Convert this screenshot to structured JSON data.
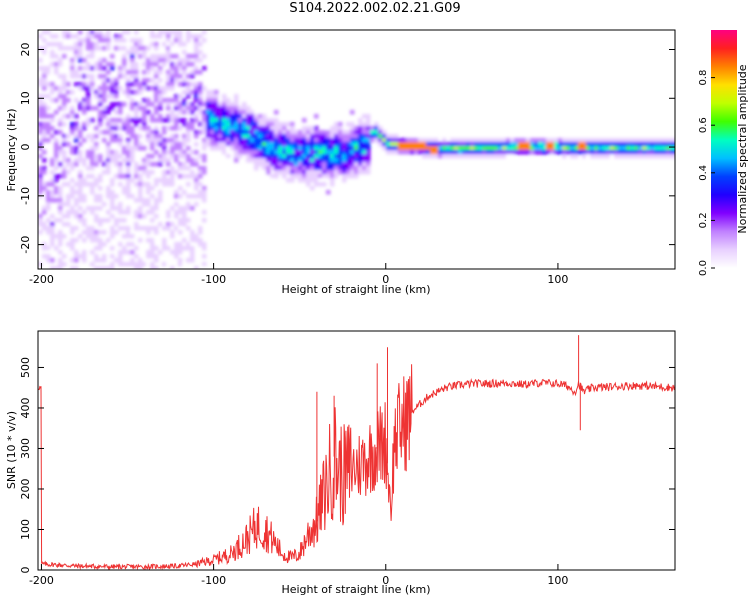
{
  "figure": {
    "title": "S104.2022.002.02.21.G09"
  },
  "chart_data": [
    {
      "type": "heatmap",
      "xlabel": "Height of straight line (km)",
      "ylabel": "Frequency (Hz)",
      "xlim": [
        -202,
        168
      ],
      "ylim": [
        -25,
        24
      ],
      "xticks": [
        -200,
        -100,
        0,
        100
      ],
      "xtick_labels": [
        "-200",
        "-100",
        "0",
        "100"
      ],
      "yticks": [
        -20,
        -10,
        0,
        10,
        20
      ],
      "ytick_labels": [
        "-20",
        "-10",
        "0",
        "10",
        "20"
      ],
      "colorbar": {
        "label": "Normalized spectral amplitude",
        "range": [
          0,
          1
        ],
        "ticks": [
          0.0,
          0.2,
          0.4,
          0.6,
          0.8
        ],
        "tick_labels": [
          "0.0",
          "0.2",
          "0.4",
          "0.6",
          "0.8"
        ],
        "colors": [
          "#ffffff",
          "#e8d0ff",
          "#c080ff",
          "#8000ff",
          "#2000ff",
          "#0040ff",
          "#00c0ff",
          "#00ffc0",
          "#40ff00",
          "#c0ff00",
          "#ffe000",
          "#ff8000",
          "#ff2020",
          "#ff0080"
        ]
      },
      "ridge": [
        {
          "x": -190,
          "y": 10
        },
        {
          "x": -160,
          "y": 9
        },
        {
          "x": -130,
          "y": 7.5
        },
        {
          "x": -110,
          "y": 7
        },
        {
          "x": -95,
          "y": 5
        },
        {
          "x": -80,
          "y": 3
        },
        {
          "x": -65,
          "y": 0
        },
        {
          "x": -55,
          "y": -1
        },
        {
          "x": -40,
          "y": -1
        },
        {
          "x": -25,
          "y": -1
        },
        {
          "x": -12,
          "y": 1
        },
        {
          "x": -8,
          "y": 4
        },
        {
          "x": 0,
          "y": 1
        },
        {
          "x": 30,
          "y": 0
        },
        {
          "x": 80,
          "y": 0.5
        },
        {
          "x": 120,
          "y": 0.3
        },
        {
          "x": 168,
          "y": 0.3
        }
      ]
    },
    {
      "type": "line",
      "xlabel": "Height of straight line (km)",
      "ylabel": "SNR (10 * v/v)",
      "xlim": [
        -202,
        168
      ],
      "ylim": [
        0,
        590
      ],
      "xticks": [
        -200,
        -100,
        0,
        100
      ],
      "xtick_labels": [
        "-200",
        "-100",
        "0",
        "100"
      ],
      "yticks": [
        0,
        100,
        200,
        300,
        400,
        500
      ],
      "ytick_labels": [
        "0",
        "100",
        "200",
        "300",
        "400",
        "500"
      ],
      "color": "#ee3333",
      "series": [
        {
          "x": [
            -200,
            -180,
            -160,
            -140,
            -120,
            -110,
            -100,
            -90,
            -85,
            -80,
            -75,
            -70,
            -65,
            -60,
            -55,
            -50,
            -45,
            -40,
            -35,
            -30,
            -25,
            -20,
            -15,
            -10,
            -5,
            0,
            3,
            5,
            8,
            10,
            15,
            20,
            25,
            30,
            35,
            40,
            50,
            60,
            70,
            80,
            90,
            100,
            105,
            110,
            112,
            115,
            120,
            130,
            140,
            150,
            160,
            168
          ],
          "y": [
            15,
            10,
            8,
            8,
            10,
            15,
            25,
            40,
            60,
            80,
            110,
            100,
            70,
            40,
            30,
            40,
            90,
            120,
            200,
            280,
            230,
            250,
            260,
            280,
            300,
            320,
            150,
            320,
            350,
            360,
            390,
            410,
            430,
            440,
            450,
            455,
            460,
            460,
            462,
            458,
            462,
            460,
            455,
            440,
            460,
            440,
            450,
            452,
            455,
            455,
            452,
            450
          ]
        }
      ],
      "spikes": [
        {
          "x": -40,
          "y": 440
        },
        {
          "x": -30,
          "y": 430
        },
        {
          "x": -5,
          "y": 510
        },
        {
          "x": 1,
          "y": 550
        },
        {
          "x": 112,
          "y": 580
        },
        {
          "x": 113,
          "y": 345
        }
      ]
    }
  ]
}
